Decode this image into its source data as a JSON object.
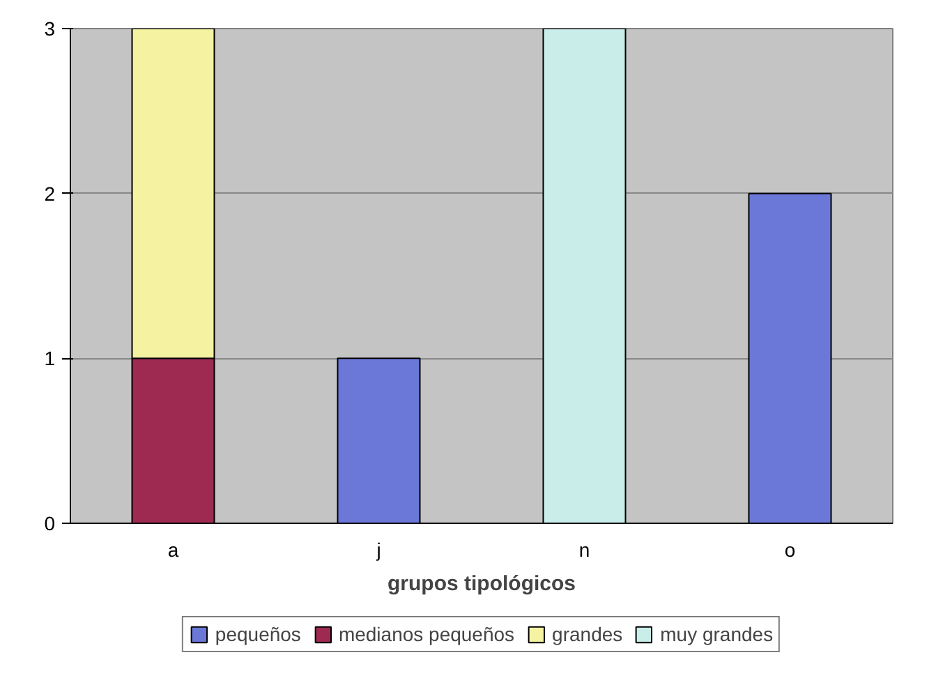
{
  "chart_data": {
    "type": "bar",
    "stacked": true,
    "xlabel": "grupos tipológicos",
    "categories": [
      "a",
      "j",
      "n",
      "o"
    ],
    "series": [
      {
        "name": "pequeños",
        "color": "#6b78d8",
        "values": [
          null,
          1,
          null,
          2
        ]
      },
      {
        "name": "medianos pequeños",
        "color": "#9e2a52",
        "values": [
          1,
          null,
          null,
          null
        ]
      },
      {
        "name": "grandes",
        "color": "#f5f2a2",
        "values": [
          2,
          null,
          null,
          null
        ]
      },
      {
        "name": "muy grandes",
        "color": "#c9eeea",
        "values": [
          null,
          null,
          3,
          null
        ]
      }
    ],
    "ylim": [
      0,
      3
    ],
    "yticks": [
      0,
      1,
      2,
      3
    ],
    "grid": "y",
    "legend": "bottom"
  }
}
